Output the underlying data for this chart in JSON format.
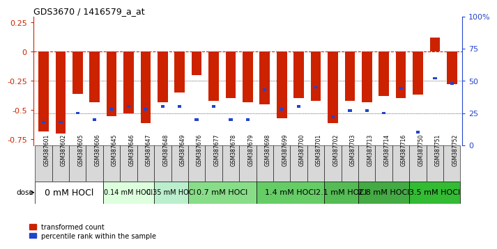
{
  "title": "GDS3670 / 1416579_a_at",
  "samples": [
    "GSM387601",
    "GSM387602",
    "GSM387605",
    "GSM387606",
    "GSM387645",
    "GSM387646",
    "GSM387647",
    "GSM387648",
    "GSM387649",
    "GSM387676",
    "GSM387677",
    "GSM387678",
    "GSM387679",
    "GSM387698",
    "GSM387699",
    "GSM387700",
    "GSM387701",
    "GSM387702",
    "GSM387703",
    "GSM387713",
    "GSM387714",
    "GSM387716",
    "GSM387750",
    "GSM387751",
    "GSM387752"
  ],
  "red_values": [
    -0.68,
    -0.7,
    -0.36,
    -0.43,
    -0.55,
    -0.53,
    -0.61,
    -0.43,
    -0.35,
    -0.2,
    -0.42,
    -0.4,
    -0.43,
    -0.45,
    -0.57,
    -0.4,
    -0.42,
    -0.61,
    -0.42,
    -0.43,
    -0.38,
    -0.4,
    -0.37,
    0.12,
    -0.28
  ],
  "blue_percentiles": [
    18,
    18,
    25,
    20,
    28,
    30,
    28,
    30,
    30,
    20,
    30,
    20,
    20,
    43,
    28,
    30,
    45,
    22,
    27,
    27,
    25,
    44,
    10,
    52,
    48
  ],
  "groups": [
    {
      "label": "0 mM HOCl",
      "start": 0,
      "end": 4,
      "color": "#ffffff"
    },
    {
      "label": "0.14 mM HOCl",
      "start": 4,
      "end": 7,
      "color": "#ddffdd"
    },
    {
      "label": "0.35 mM HOCl",
      "start": 7,
      "end": 9,
      "color": "#bbeecc"
    },
    {
      "label": "0.7 mM HOCl",
      "start": 9,
      "end": 13,
      "color": "#88dd88"
    },
    {
      "label": "1.4 mM HOCl",
      "start": 13,
      "end": 17,
      "color": "#66cc66"
    },
    {
      "label": "2.1 mM HOCl",
      "start": 17,
      "end": 19,
      "color": "#55bb55"
    },
    {
      "label": "2.8 mM HOCl",
      "start": 19,
      "end": 22,
      "color": "#44aa44"
    },
    {
      "label": "3.5 mM HOCl",
      "start": 22,
      "end": 25,
      "color": "#33bb33"
    }
  ],
  "ylim_left": [
    -0.8,
    0.3
  ],
  "ylim_right": [
    0,
    100
  ],
  "red_color": "#cc2200",
  "blue_color": "#2244cc",
  "bar_width": 0.6,
  "group_fontsizes": [
    9,
    7,
    7,
    8,
    8,
    8,
    8,
    8
  ]
}
